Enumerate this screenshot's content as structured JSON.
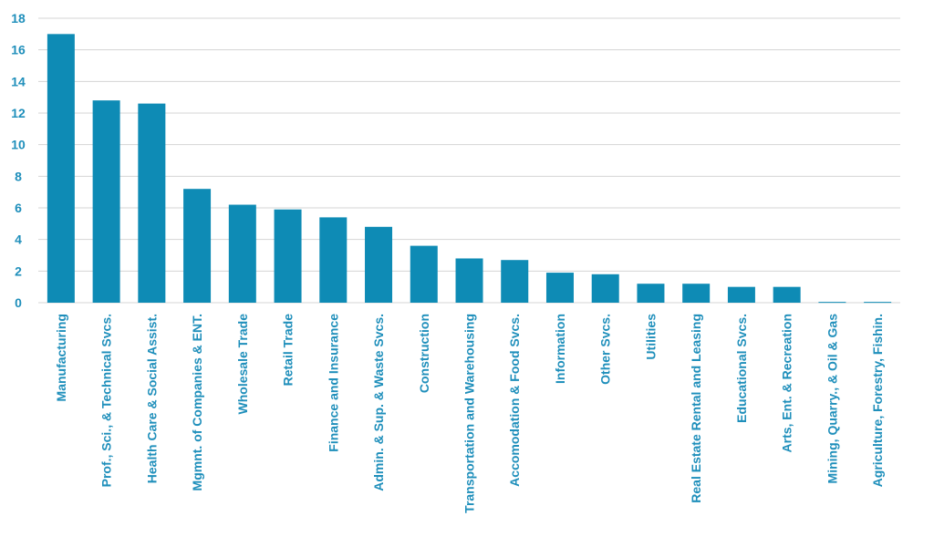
{
  "colors": {
    "bar": "#0e8bb5",
    "text": "#1f8fbb",
    "grid": "#d4d4d4"
  },
  "chart_data": {
    "type": "bar",
    "categories": [
      "Manufacturing",
      "Prof., Sci., & Technical Svcs.",
      "Health Care & Social Assist.",
      "Mgmnt. of Companies & ENT.",
      "Wholesale Trade",
      "Retail Trade",
      "Finance and Insurance",
      "Admin. & Sup. & Waste Svcs.",
      "Construction",
      "Transportation and Warehousing",
      "Accomodation & Food Svcs.",
      "Information",
      "Other Svcs.",
      "Utilities",
      "Real Estate Rental and Leasing",
      "Educational Svcs.",
      "Arts, Ent. & Recreation",
      "Mining, Quarry., & Oil & Gas",
      "Agriculture, Forestry, Fishin."
    ],
    "values": [
      17.0,
      12.8,
      12.6,
      7.2,
      6.2,
      5.9,
      5.4,
      4.8,
      3.6,
      2.8,
      2.7,
      1.9,
      1.8,
      1.2,
      1.2,
      1.0,
      1.0,
      0.05,
      0.05
    ],
    "yticks": [
      "0",
      "2",
      "4",
      "6",
      "8",
      "10",
      "12",
      "14",
      "16",
      "18"
    ],
    "ylim": [
      0,
      18
    ],
    "grid": true,
    "title": "",
    "xlabel": "",
    "ylabel": ""
  }
}
